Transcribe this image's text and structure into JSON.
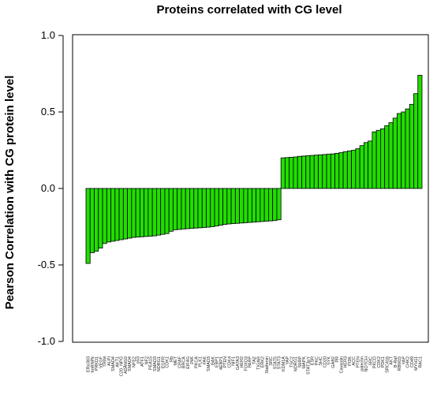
{
  "chart_data": {
    "type": "bar",
    "title": "Proteins correlated with CG level",
    "xlabel": "",
    "ylabel": "Pearson Correlation with CG protein level",
    "ylim": [
      -1.0,
      1.0
    ],
    "yticks": [
      "-1.0",
      "-0.5",
      "0.0",
      "0.5",
      "1.0"
    ],
    "bar_color": "#22dd00",
    "categories": [
      "ERα303",
      "hnRNPk",
      "PRKD1",
      "VEGF",
      "TRIM",
      "ALPI",
      "SMAD4",
      "AKT1",
      "C20_NPG",
      "ADAM10",
      "SMAD4",
      "NFE2",
      "p53",
      "ATF1",
      "NF2",
      "PEA15",
      "SMAD3",
      "NDRG1",
      "EGFR",
      "CDK1",
      "Rb",
      "MET",
      "CRAF",
      "BRCA",
      "EIF4G",
      "JNK",
      "PKCA",
      "PLK1",
      "FAK",
      "SMAD3",
      "BAK",
      "EBP1",
      "4EBP1",
      "PTEN",
      "CDK4",
      "NIF1",
      "GATA3",
      "HER2",
      "FOXO3",
      "PARP",
      "TAZ",
      "TIGAR",
      "ERK2",
      "Stathmin",
      "SRC",
      "STAT5",
      "STAT3",
      "KDM1A",
      "YAP",
      "TSC2",
      "NDRG1",
      "S6RP",
      "MAPK",
      "STAT3pY",
      "ESR",
      "PKC",
      "SHC",
      "CD20",
      "SYK",
      "GAB2",
      "PR",
      "Caveolin",
      "HER3",
      "PI3K",
      "ACC",
      "PTEN",
      "galectin",
      "NOTCH",
      "SRC",
      "PKCD",
      "CDK2",
      "PDK1",
      "SRC416",
      "AKT",
      "B-Raf",
      "RBM15",
      "YAP",
      "CHK2",
      "CD49",
      "MYH11",
      "RAC1"
    ],
    "values": [
      -0.49,
      -0.42,
      -0.41,
      -0.39,
      -0.36,
      -0.35,
      -0.345,
      -0.34,
      -0.335,
      -0.33,
      -0.325,
      -0.32,
      -0.318,
      -0.316,
      -0.314,
      -0.312,
      -0.31,
      -0.305,
      -0.3,
      -0.295,
      -0.28,
      -0.27,
      -0.268,
      -0.265,
      -0.263,
      -0.261,
      -0.259,
      -0.257,
      -0.255,
      -0.253,
      -0.25,
      -0.245,
      -0.24,
      -0.235,
      -0.232,
      -0.23,
      -0.228,
      -0.226,
      -0.224,
      -0.222,
      -0.22,
      -0.218,
      -0.216,
      -0.214,
      -0.212,
      -0.21,
      -0.205,
      0.2,
      0.202,
      0.204,
      0.206,
      0.21,
      0.212,
      0.214,
      0.216,
      0.218,
      0.22,
      0.222,
      0.224,
      0.226,
      0.23,
      0.234,
      0.24,
      0.245,
      0.25,
      0.26,
      0.28,
      0.3,
      0.31,
      0.37,
      0.38,
      0.39,
      0.41,
      0.43,
      0.46,
      0.49,
      0.5,
      0.52,
      0.55,
      0.62,
      0.74
    ]
  }
}
